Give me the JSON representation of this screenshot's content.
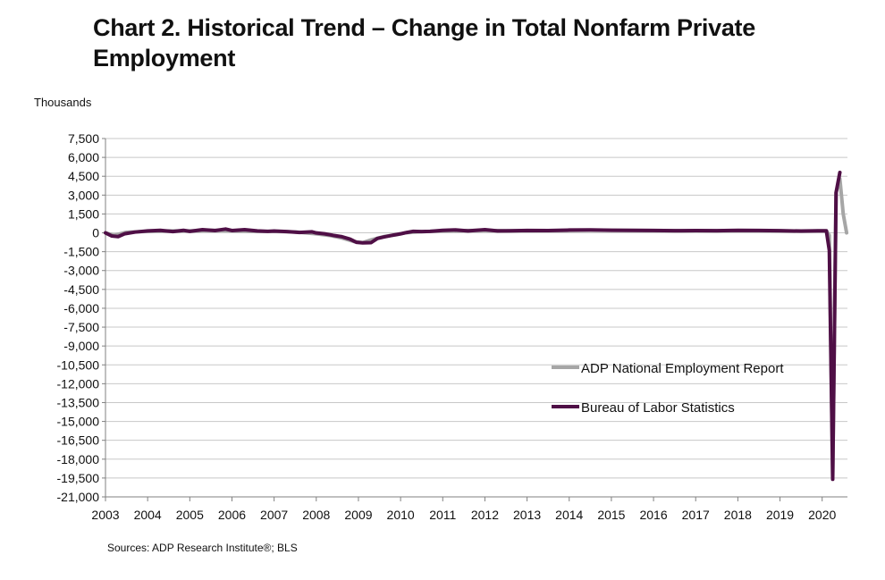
{
  "title": "Chart 2. Historical Trend – Change in Total Nonfarm Private Employment",
  "unit_label": "Thousands",
  "source": "Sources: ADP Research Institute®; BLS",
  "colors": {
    "adp": "#a6a6a6",
    "bls": "#4f0f46",
    "grid": "#c8c8c8",
    "axis": "#808080"
  },
  "chart_data": {
    "type": "line",
    "title": "Chart 2. Historical Trend – Change in Total Nonfarm Private Employment",
    "xlabel": "",
    "ylabel": "Thousands",
    "xlim": [
      2003,
      2020.6
    ],
    "ylim": [
      -21000,
      7500
    ],
    "y_ticks": [
      7500,
      6000,
      4500,
      3000,
      1500,
      0,
      -1500,
      -3000,
      -4500,
      -6000,
      -7500,
      -9000,
      -10500,
      -12000,
      -13500,
      -15000,
      -16500,
      -18000,
      -19500,
      -21000
    ],
    "y_tick_labels": [
      "7,500",
      "6,000",
      "4,500",
      "3,000",
      "1,500",
      "0",
      "-1,500",
      "-3,000",
      "-4,500",
      "-6,000",
      "-7,500",
      "-9,000",
      "-10,500",
      "-12,000",
      "-13,500",
      "-15,000",
      "-16,500",
      "-18,000",
      "-19,500",
      "-21,000"
    ],
    "x_tick_labels": [
      "2003",
      "2004",
      "2005",
      "2006",
      "2007",
      "2008",
      "2009",
      "2010",
      "2011",
      "2012",
      "2013",
      "2014",
      "2015",
      "2016",
      "2017",
      "2018",
      "2019",
      "2020"
    ],
    "grid": true,
    "legend_position": "lower-right",
    "series": [
      {
        "name": "ADP National Employment Report",
        "color": "#a6a6a6",
        "points": [
          [
            2003.0,
            0
          ],
          [
            2003.2,
            -200
          ],
          [
            2003.5,
            50
          ],
          [
            2004.0,
            120
          ],
          [
            2004.5,
            150
          ],
          [
            2005.0,
            150
          ],
          [
            2005.5,
            200
          ],
          [
            2006.0,
            170
          ],
          [
            2006.5,
            120
          ],
          [
            2007.0,
            110
          ],
          [
            2007.5,
            70
          ],
          [
            2008.0,
            -80
          ],
          [
            2008.3,
            -200
          ],
          [
            2008.6,
            -400
          ],
          [
            2008.9,
            -700
          ],
          [
            2009.1,
            -780
          ],
          [
            2009.3,
            -560
          ],
          [
            2009.6,
            -300
          ],
          [
            2009.9,
            -150
          ],
          [
            2010.1,
            0
          ],
          [
            2010.5,
            90
          ],
          [
            2011.0,
            150
          ],
          [
            2011.5,
            180
          ],
          [
            2012.0,
            200
          ],
          [
            2012.5,
            160
          ],
          [
            2013.0,
            170
          ],
          [
            2013.5,
            180
          ],
          [
            2014.0,
            190
          ],
          [
            2014.5,
            210
          ],
          [
            2015.0,
            200
          ],
          [
            2015.5,
            190
          ],
          [
            2016.0,
            180
          ],
          [
            2016.5,
            160
          ],
          [
            2017.0,
            170
          ],
          [
            2017.5,
            160
          ],
          [
            2018.0,
            180
          ],
          [
            2018.5,
            170
          ],
          [
            2019.0,
            150
          ],
          [
            2019.5,
            130
          ],
          [
            2019.9,
            150
          ],
          [
            2020.1,
            150
          ],
          [
            2020.17,
            -200
          ],
          [
            2020.25,
            -19500
          ],
          [
            2020.33,
            3200
          ],
          [
            2020.42,
            4300
          ],
          [
            2020.5,
            1500
          ],
          [
            2020.58,
            0
          ]
        ]
      },
      {
        "name": "Bureau of Labor Statistics",
        "color": "#4f0f46",
        "points": [
          [
            2003.0,
            0
          ],
          [
            2003.15,
            -250
          ],
          [
            2003.3,
            -300
          ],
          [
            2003.45,
            -80
          ],
          [
            2003.7,
            60
          ],
          [
            2004.0,
            150
          ],
          [
            2004.3,
            200
          ],
          [
            2004.6,
            100
          ],
          [
            2004.85,
            200
          ],
          [
            2005.0,
            120
          ],
          [
            2005.3,
            250
          ],
          [
            2005.6,
            180
          ],
          [
            2005.85,
            300
          ],
          [
            2006.0,
            180
          ],
          [
            2006.3,
            250
          ],
          [
            2006.6,
            150
          ],
          [
            2006.85,
            120
          ],
          [
            2007.0,
            140
          ],
          [
            2007.3,
            100
          ],
          [
            2007.6,
            30
          ],
          [
            2007.9,
            80
          ],
          [
            2008.0,
            -10
          ],
          [
            2008.2,
            -80
          ],
          [
            2008.4,
            -200
          ],
          [
            2008.6,
            -300
          ],
          [
            2008.8,
            -500
          ],
          [
            2008.95,
            -750
          ],
          [
            2009.1,
            -800
          ],
          [
            2009.3,
            -780
          ],
          [
            2009.45,
            -450
          ],
          [
            2009.6,
            -330
          ],
          [
            2009.8,
            -200
          ],
          [
            2010.0,
            -80
          ],
          [
            2010.15,
            30
          ],
          [
            2010.3,
            120
          ],
          [
            2010.5,
            100
          ],
          [
            2010.7,
            120
          ],
          [
            2011.0,
            200
          ],
          [
            2011.3,
            230
          ],
          [
            2011.6,
            150
          ],
          [
            2012.0,
            250
          ],
          [
            2012.3,
            150
          ],
          [
            2012.6,
            160
          ],
          [
            2013.0,
            190
          ],
          [
            2013.5,
            180
          ],
          [
            2014.0,
            220
          ],
          [
            2014.5,
            230
          ],
          [
            2015.0,
            210
          ],
          [
            2015.5,
            200
          ],
          [
            2016.0,
            190
          ],
          [
            2016.5,
            170
          ],
          [
            2017.0,
            180
          ],
          [
            2017.5,
            170
          ],
          [
            2018.0,
            200
          ],
          [
            2018.5,
            190
          ],
          [
            2019.0,
            170
          ],
          [
            2019.5,
            140
          ],
          [
            2019.9,
            160
          ],
          [
            2020.1,
            160
          ],
          [
            2020.17,
            -1400
          ],
          [
            2020.25,
            -19600
          ],
          [
            2020.33,
            3200
          ],
          [
            2020.42,
            4800
          ]
        ]
      }
    ]
  }
}
